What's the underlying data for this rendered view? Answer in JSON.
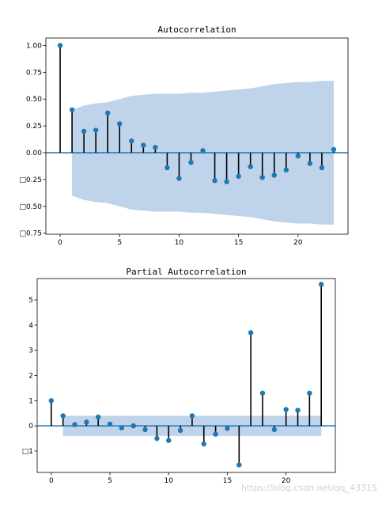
{
  "watermark": "https://blog.csdn.net/qq_43315",
  "colors": {
    "marker": "#1f77b4",
    "stem": "#000000",
    "band": "#a9c6e3",
    "zero_line": "#1f77b4"
  },
  "chart_data": [
    {
      "type": "stem",
      "title": "Autocorrelation",
      "xlabel": "",
      "ylabel": "",
      "x": [
        0,
        1,
        2,
        3,
        4,
        5,
        6,
        7,
        8,
        9,
        10,
        11,
        12,
        13,
        14,
        15,
        16,
        17,
        18,
        19,
        20,
        21,
        22,
        23
      ],
      "values": [
        1.0,
        0.4,
        0.2,
        0.21,
        0.37,
        0.27,
        0.11,
        0.07,
        0.05,
        -0.14,
        -0.24,
        -0.09,
        0.02,
        -0.26,
        -0.27,
        -0.22,
        -0.13,
        -0.23,
        -0.21,
        -0.16,
        -0.03,
        -0.1,
        -0.14,
        0.03
      ],
      "confidence_band": {
        "x": [
          1,
          2,
          3,
          4,
          5,
          6,
          7,
          8,
          9,
          10,
          11,
          12,
          13,
          14,
          15,
          16,
          17,
          18,
          19,
          20,
          21,
          22,
          23
        ],
        "upper": [
          0.4,
          0.44,
          0.46,
          0.47,
          0.5,
          0.53,
          0.54,
          0.55,
          0.55,
          0.55,
          0.56,
          0.56,
          0.57,
          0.58,
          0.59,
          0.6,
          0.62,
          0.64,
          0.65,
          0.66,
          0.66,
          0.67,
          0.67
        ],
        "lower": [
          -0.4,
          -0.44,
          -0.46,
          -0.47,
          -0.5,
          -0.53,
          -0.54,
          -0.55,
          -0.55,
          -0.55,
          -0.56,
          -0.56,
          -0.57,
          -0.58,
          -0.59,
          -0.6,
          -0.62,
          -0.64,
          -0.65,
          -0.66,
          -0.66,
          -0.67,
          -0.67
        ]
      },
      "xlim": [
        -1.2,
        24.2
      ],
      "ylim": [
        -0.76,
        1.07
      ],
      "xticks": [
        0,
        5,
        10,
        15,
        20
      ],
      "xtick_labels": [
        "0",
        "5",
        "10",
        "15",
        "20"
      ],
      "yticks": [
        1.0,
        0.75,
        0.5,
        0.25,
        0.0,
        -0.25,
        -0.5,
        -0.75
      ],
      "ytick_labels": [
        "1.00",
        "0.75",
        "0.50",
        "0.25",
        "0.00",
        "□0.25",
        "□0.50",
        "□0.75"
      ],
      "grid": false,
      "legend": "none"
    },
    {
      "type": "stem",
      "title": "Partial Autocorrelation",
      "xlabel": "",
      "ylabel": "",
      "x": [
        0,
        1,
        2,
        3,
        4,
        5,
        6,
        7,
        8,
        9,
        10,
        11,
        12,
        13,
        14,
        15,
        16,
        17,
        18,
        19,
        20,
        21,
        22,
        23
      ],
      "values": [
        1.0,
        0.4,
        0.05,
        0.15,
        0.35,
        0.07,
        -0.08,
        0.0,
        -0.15,
        -0.5,
        -0.58,
        -0.18,
        0.4,
        -0.72,
        -0.33,
        -0.1,
        -1.55,
        3.7,
        1.3,
        -0.15,
        0.65,
        0.62,
        1.3,
        5.62
      ],
      "confidence_band": {
        "x": [
          1,
          23
        ],
        "upper": [
          0.4,
          0.4
        ],
        "lower": [
          -0.4,
          -0.4
        ]
      },
      "xlim": [
        -1.2,
        24.2
      ],
      "ylim": [
        -1.85,
        5.85
      ],
      "xticks": [
        0,
        5,
        10,
        15,
        20
      ],
      "xtick_labels": [
        "0",
        "5",
        "10",
        "15",
        "20"
      ],
      "yticks": [
        5,
        4,
        3,
        2,
        1,
        0,
        -1
      ],
      "ytick_labels": [
        "5",
        "4",
        "3",
        "2",
        "1",
        "0",
        "□1"
      ],
      "grid": false,
      "legend": "none"
    }
  ]
}
